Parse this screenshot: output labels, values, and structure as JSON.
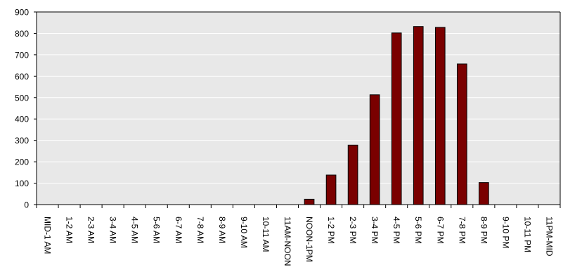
{
  "colors": {
    "plot_background": "#e8e8e8",
    "bar_fill": "#7a0000",
    "bar_stroke": "#000000",
    "axis": "#000000",
    "gridline": "#ffffff"
  },
  "chart_data": {
    "type": "bar",
    "title": "",
    "xlabel": "",
    "ylabel": "",
    "ylim": [
      0,
      900
    ],
    "yticks": [
      0,
      100,
      200,
      300,
      400,
      500,
      600,
      700,
      800,
      900
    ],
    "grid": true,
    "legend": "none",
    "categories": [
      "MID-1 AM",
      "1-2 AM",
      "2-3 AM",
      "3-4 AM",
      "4-5 AM",
      "5-6 AM",
      "6-7 AM",
      "7-8 AM",
      "8-9 AM",
      "9-10 AM",
      "10-11 AM",
      "11AM-NOON",
      "NOON-1PM",
      "1-2 PM",
      "2-3 PM",
      "3-4 PM",
      "4-5 PM",
      "5-6 PM",
      "6-7 PM",
      "7-8 PM",
      "8-9 PM",
      "9-10 PM",
      "10-11 PM",
      "11PM-MID"
    ],
    "values": [
      0,
      0,
      0,
      0,
      0,
      0,
      0,
      0,
      0,
      0,
      0,
      0,
      25,
      138,
      278,
      513,
      802,
      832,
      828,
      657,
      103,
      0,
      0,
      0
    ]
  }
}
